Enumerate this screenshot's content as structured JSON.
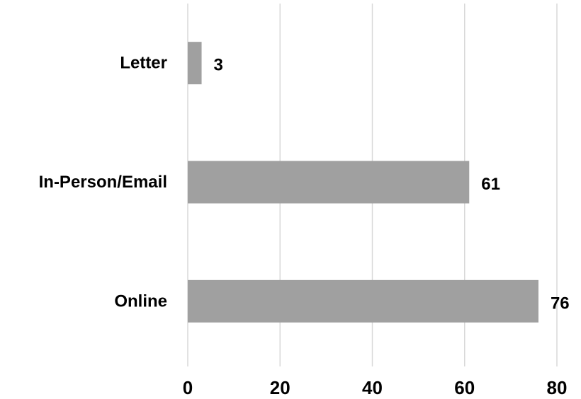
{
  "chart_data": {
    "type": "bar",
    "orientation": "horizontal",
    "categories": [
      "Letter",
      "In-Person/Email",
      "Online"
    ],
    "values": [
      3,
      61,
      76
    ],
    "data_labels": [
      "3",
      "61",
      "76"
    ],
    "title": "",
    "xlabel": "",
    "ylabel": "",
    "xlim": [
      0,
      80
    ],
    "x_ticks": [
      0,
      20,
      40,
      60,
      80
    ],
    "x_tick_labels": [
      "0",
      "20",
      "40",
      "60",
      "80"
    ],
    "grid": "vertical",
    "legend": "none",
    "bar_color": "#a0a0a0",
    "grid_color": "#d9d9d9"
  }
}
